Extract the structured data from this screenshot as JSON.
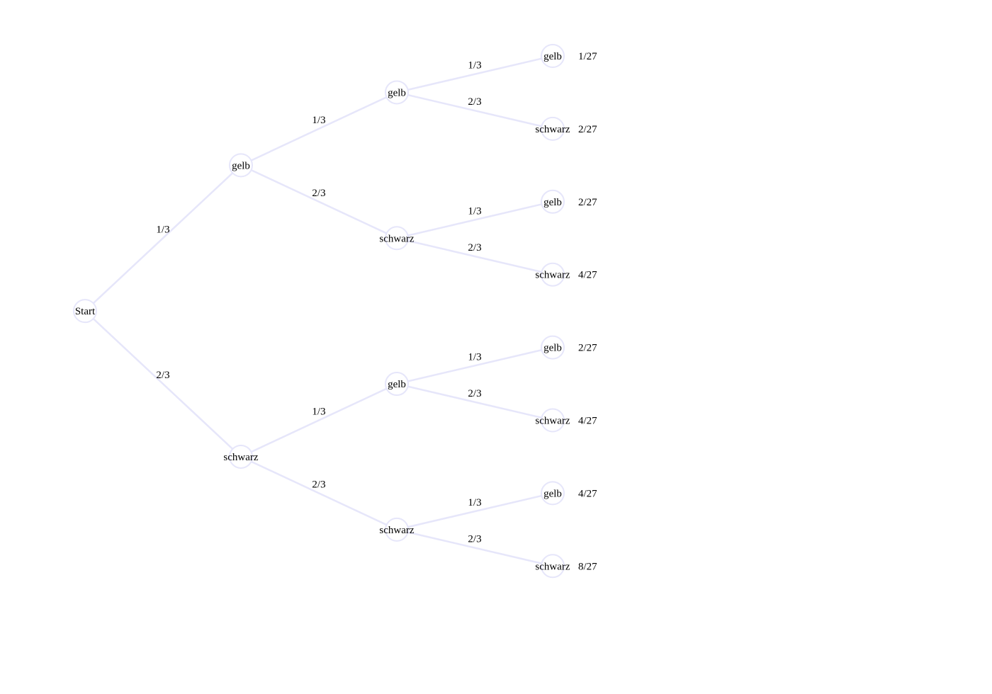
{
  "colors": {
    "edge": "#e6e6fa",
    "node_stroke": "#e6e6fa",
    "text": "#000000"
  },
  "tree": {
    "label": "Start",
    "children": [
      {
        "label": "gelb",
        "prob": "1/3",
        "children": [
          {
            "label": "gelb",
            "prob": "1/3",
            "children": [
              {
                "label": "gelb",
                "prob": "1/3",
                "result": "1/27"
              },
              {
                "label": "schwarz",
                "prob": "2/3",
                "result": "2/27"
              }
            ]
          },
          {
            "label": "schwarz",
            "prob": "2/3",
            "children": [
              {
                "label": "gelb",
                "prob": "1/3",
                "result": "2/27"
              },
              {
                "label": "schwarz",
                "prob": "2/3",
                "result": "4/27"
              }
            ]
          }
        ]
      },
      {
        "label": "schwarz",
        "prob": "2/3",
        "children": [
          {
            "label": "gelb",
            "prob": "1/3",
            "children": [
              {
                "label": "gelb",
                "prob": "1/3",
                "result": "2/27"
              },
              {
                "label": "schwarz",
                "prob": "2/3",
                "result": "4/27"
              }
            ]
          },
          {
            "label": "schwarz",
            "prob": "2/3",
            "children": [
              {
                "label": "gelb",
                "prob": "1/3",
                "result": "4/27"
              },
              {
                "label": "schwarz",
                "prob": "2/3",
                "result": "8/27"
              }
            ]
          }
        ]
      }
    ]
  }
}
